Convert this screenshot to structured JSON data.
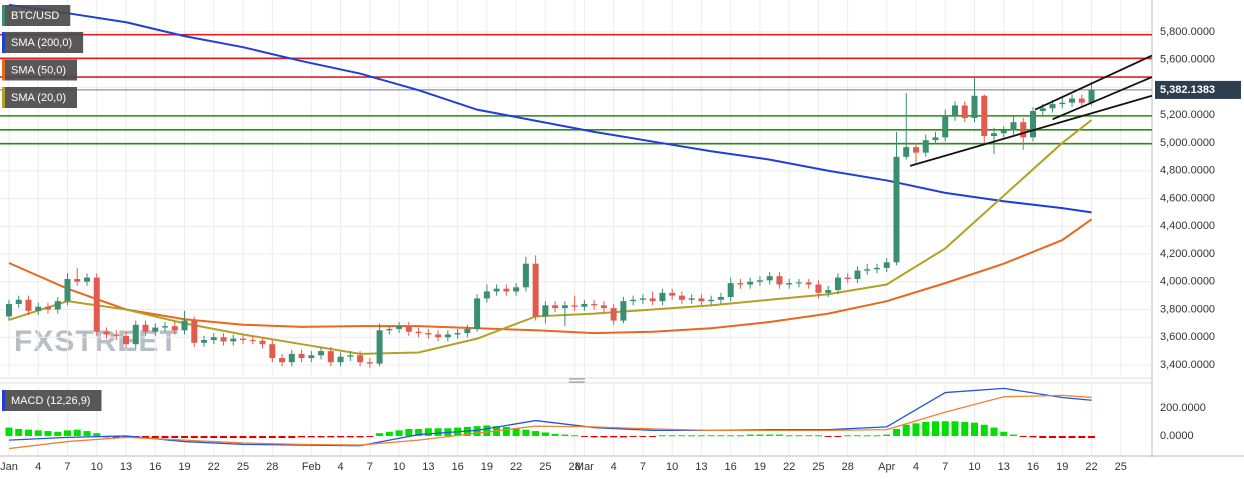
{
  "chart_data": [
    {
      "type": "candlestick",
      "title": "BTC/USD",
      "watermark": "FXSTREET",
      "color_up": "#3a8f71",
      "color_down": "#e35b4f",
      "title_color": "#3a8f71",
      "xlim": [
        -0.92,
        117.2
      ],
      "ylim": [
        3328,
        6030
      ],
      "grid": true,
      "xticks": [
        {
          "value": 0,
          "label": "Jan"
        },
        {
          "value": 3,
          "label": "4"
        },
        {
          "value": 6,
          "label": "7"
        },
        {
          "value": 9,
          "label": "10"
        },
        {
          "value": 12,
          "label": "13"
        },
        {
          "value": 15,
          "label": "16"
        },
        {
          "value": 18,
          "label": "19"
        },
        {
          "value": 21,
          "label": "22"
        },
        {
          "value": 24,
          "label": "25"
        },
        {
          "value": 27,
          "label": "28"
        },
        {
          "value": 31,
          "label": "Feb"
        },
        {
          "value": 34,
          "label": "4"
        },
        {
          "value": 37,
          "label": "7"
        },
        {
          "value": 40,
          "label": "10"
        },
        {
          "value": 43,
          "label": "13"
        },
        {
          "value": 46,
          "label": "16"
        },
        {
          "value": 49,
          "label": "19"
        },
        {
          "value": 52,
          "label": "22"
        },
        {
          "value": 55,
          "label": "25"
        },
        {
          "value": 58,
          "label": "28"
        },
        {
          "value": 59,
          "label": "Mar"
        },
        {
          "value": 62,
          "label": "4"
        },
        {
          "value": 65,
          "label": "7"
        },
        {
          "value": 68,
          "label": "10"
        },
        {
          "value": 71,
          "label": "13"
        },
        {
          "value": 74,
          "label": "16"
        },
        {
          "value": 77,
          "label": "19"
        },
        {
          "value": 80,
          "label": "22"
        },
        {
          "value": 83,
          "label": "25"
        },
        {
          "value": 86,
          "label": "28"
        },
        {
          "value": 90,
          "label": "Apr"
        },
        {
          "value": 93,
          "label": "4"
        },
        {
          "value": 96,
          "label": "7"
        },
        {
          "value": 99,
          "label": "10"
        },
        {
          "value": 102,
          "label": "13"
        },
        {
          "value": 105,
          "label": "16"
        },
        {
          "value": 108,
          "label": "19"
        },
        {
          "value": 111,
          "label": "22"
        },
        {
          "value": 114,
          "label": "25"
        }
      ],
      "yticks": [
        {
          "value": 3400,
          "label": "3,400.0000"
        },
        {
          "value": 3600,
          "label": "3,600.0000"
        },
        {
          "value": 3800,
          "label": "3,800.0000"
        },
        {
          "value": 4000,
          "label": "4,000.0000"
        },
        {
          "value": 4200,
          "label": "4,200.0000"
        },
        {
          "value": 4400,
          "label": "4,400.0000"
        },
        {
          "value": 4600,
          "label": "4,600.0000"
        },
        {
          "value": 4800,
          "label": "4,800.0000"
        },
        {
          "value": 5000,
          "label": "5,000.0000"
        },
        {
          "value": 5200,
          "label": "5,200.0000"
        },
        {
          "value": 5400,
          "label": "5,400.0000"
        },
        {
          "value": 5600,
          "label": "5,600.0000"
        },
        {
          "value": 5800,
          "label": "5,800.0000"
        }
      ],
      "open": [
        3750,
        3840,
        3870,
        3790,
        3820,
        3800,
        3860,
        4020,
        4000,
        4030,
        3640,
        3620,
        3610,
        3550,
        3690,
        3640,
        3670,
        3680,
        3650,
        3720,
        3560,
        3580,
        3600,
        3570,
        3590,
        3580,
        3575,
        3550,
        3450,
        3420,
        3480,
        3450,
        3470,
        3500,
        3420,
        3460,
        3470,
        3420,
        3410,
        3650,
        3660,
        3680,
        3640,
        3630,
        3620,
        3600,
        3620,
        3630,
        3660,
        3880,
        3930,
        3950,
        3930,
        3960,
        4130,
        3750,
        3830,
        3810,
        3830,
        3820,
        3840,
        3830,
        3810,
        3720,
        3860,
        3870,
        3880,
        3860,
        3920,
        3900,
        3870,
        3880,
        3860,
        3870,
        3890,
        3990,
        3980,
        4000,
        4010,
        4040,
        3980,
        3990,
        3995,
        3980,
        3920,
        3940,
        4030,
        4020,
        4080,
        4090,
        4100,
        4140,
        4900,
        4970,
        4930,
        5020,
        5040,
        5200,
        5270,
        5180,
        5340,
        5050,
        5070,
        5090,
        5150,
        5040,
        5230,
        5250,
        5280,
        5290,
        5320,
        5290
      ],
      "high": [
        3870,
        3900,
        3900,
        3850,
        3850,
        3890,
        4060,
        4100,
        4060,
        4060,
        3670,
        3650,
        3640,
        3720,
        3720,
        3700,
        3710,
        3710,
        3790,
        3750,
        3610,
        3630,
        3630,
        3620,
        3620,
        3610,
        3600,
        3580,
        3480,
        3510,
        3510,
        3500,
        3530,
        3530,
        3490,
        3500,
        3500,
        3450,
        3700,
        3680,
        3710,
        3710,
        3670,
        3660,
        3650,
        3650,
        3660,
        3690,
        3910,
        3980,
        3980,
        3980,
        3990,
        4180,
        4190,
        3860,
        3860,
        3860,
        3900,
        3870,
        3870,
        3860,
        3840,
        3890,
        3900,
        3910,
        3930,
        3950,
        3950,
        3930,
        3910,
        3910,
        3900,
        3920,
        4030,
        4020,
        4030,
        4040,
        4070,
        4070,
        4020,
        4020,
        4020,
        4010,
        3970,
        4060,
        4060,
        4110,
        4130,
        4130,
        4170,
        5080,
        5360,
        5000,
        5060,
        5080,
        5240,
        5300,
        5300,
        5470,
        5350,
        5110,
        5120,
        5190,
        5180,
        5260,
        5280,
        5310,
        5340,
        5350,
        5350,
        5440
      ],
      "low": [
        3720,
        3810,
        3760,
        3760,
        3770,
        3770,
        3830,
        3970,
        3970,
        3610,
        3590,
        3580,
        3520,
        3520,
        3610,
        3610,
        3640,
        3620,
        3620,
        3530,
        3530,
        3550,
        3540,
        3540,
        3550,
        3550,
        3520,
        3420,
        3390,
        3390,
        3420,
        3420,
        3440,
        3390,
        3390,
        3430,
        3390,
        3380,
        3390,
        3620,
        3630,
        3610,
        3600,
        3590,
        3570,
        3570,
        3590,
        3600,
        3640,
        3850,
        3900,
        3900,
        3900,
        3930,
        3720,
        3700,
        3780,
        3680,
        3790,
        3790,
        3800,
        3780,
        3690,
        3700,
        3830,
        3840,
        3830,
        3830,
        3870,
        3840,
        3840,
        3830,
        3830,
        3840,
        3860,
        3950,
        3950,
        3970,
        3980,
        3950,
        3950,
        3960,
        3950,
        3880,
        3890,
        3910,
        3990,
        3990,
        4050,
        4060,
        4070,
        4120,
        4880,
        4850,
        4900,
        4990,
        5010,
        5160,
        5150,
        5150,
        4990,
        4920,
        5040,
        5060,
        4950,
        5010,
        5200,
        5220,
        5250,
        5260,
        5260,
        5270
      ],
      "close": [
        3840,
        3870,
        3790,
        3820,
        3800,
        3860,
        4020,
        4000,
        4030,
        3640,
        3620,
        3610,
        3550,
        3690,
        3640,
        3670,
        3680,
        3650,
        3720,
        3560,
        3580,
        3600,
        3570,
        3590,
        3580,
        3575,
        3550,
        3450,
        3420,
        3480,
        3450,
        3470,
        3500,
        3420,
        3460,
        3470,
        3420,
        3410,
        3650,
        3660,
        3680,
        3640,
        3630,
        3620,
        3600,
        3620,
        3630,
        3660,
        3880,
        3930,
        3950,
        3930,
        3960,
        4130,
        3750,
        3830,
        3810,
        3830,
        3820,
        3840,
        3830,
        3810,
        3720,
        3860,
        3870,
        3880,
        3860,
        3920,
        3900,
        3870,
        3880,
        3860,
        3870,
        3890,
        3990,
        3980,
        4000,
        4010,
        4040,
        3980,
        3990,
        3995,
        3980,
        3920,
        3940,
        4030,
        4020,
        4080,
        4090,
        4100,
        4140,
        4900,
        4970,
        4930,
        5020,
        5040,
        5200,
        5270,
        5180,
        5340,
        5050,
        5070,
        5090,
        5150,
        5040,
        5230,
        5250,
        5280,
        5290,
        5320,
        5290,
        5382.1383
      ],
      "indicator_x": [
        0,
        6,
        12,
        18,
        24,
        30,
        36,
        42,
        48,
        54,
        60,
        66,
        72,
        78,
        84,
        90,
        96,
        102,
        108,
        111
      ],
      "series": [
        {
          "name": "SMA (200,0)",
          "color": "#1f3fd6",
          "values": [
            5995,
            5935,
            5870,
            5770,
            5690,
            5590,
            5500,
            5380,
            5240,
            5160,
            5080,
            5010,
            4940,
            4880,
            4800,
            4730,
            4640,
            4580,
            4530,
            4500
          ]
        },
        {
          "name": "SMA (50,0)",
          "color": "#e8681e",
          "values": [
            4135,
            3950,
            3800,
            3730,
            3690,
            3675,
            3680,
            3680,
            3665,
            3650,
            3630,
            3640,
            3665,
            3710,
            3770,
            3860,
            3990,
            4130,
            4300,
            4450
          ]
        },
        {
          "name": "SMA (20,0)",
          "color": "#b3a024",
          "values": [
            3725,
            3860,
            3800,
            3700,
            3620,
            3550,
            3480,
            3490,
            3590,
            3750,
            3770,
            3800,
            3830,
            3870,
            3910,
            3980,
            4240,
            4620,
            5000,
            5165
          ]
        }
      ],
      "levels": [
        {
          "value": 5780,
          "color": "#e02020"
        },
        {
          "value": 5610,
          "color": "#e02020"
        },
        {
          "value": 5475,
          "color": "#e02020"
        },
        {
          "value": 5195,
          "color": "#2a8a1a"
        },
        {
          "value": 5095,
          "color": "#2a8a1a"
        },
        {
          "value": 4995,
          "color": "#2a8a1a"
        }
      ],
      "trend_lines": [
        {
          "x": [
            92.4,
            117.2
          ],
          "values": [
            4835,
            5340
          ]
        },
        {
          "x": [
            105.2,
            117.2
          ],
          "values": [
            5240,
            5630
          ]
        },
        {
          "x": [
            107,
            117.2
          ],
          "values": [
            5170,
            5475
          ]
        }
      ],
      "last_price": {
        "value": 5382.1383,
        "label": "5,382.1383"
      }
    },
    {
      "type": "macd",
      "title": "MACD (12,26,9)",
      "title_color": "#1f3fd6",
      "ylim": [
        -136,
        364
      ],
      "yticks": [
        {
          "value": 0,
          "label": "0.0000"
        },
        {
          "value": 200,
          "label": "200.0000"
        }
      ],
      "x": [
        0,
        6,
        12,
        18,
        24,
        30,
        36,
        42,
        48,
        54,
        60,
        66,
        72,
        78,
        84,
        90,
        96,
        102,
        108,
        111
      ],
      "series": [
        {
          "color": "#2255dd",
          "values": [
            -30,
            -10,
            0,
            -40,
            -60,
            -65,
            -70,
            10,
            40,
            110,
            60,
            40,
            40,
            45,
            45,
            65,
            310,
            340,
            275,
            255
          ]
        },
        {
          "color": "#ee8236",
          "values": [
            -90,
            -40,
            -10,
            -30,
            -50,
            -60,
            -65,
            -30,
            20,
            70,
            65,
            50,
            40,
            40,
            40,
            45,
            170,
            280,
            290,
            275
          ]
        }
      ],
      "histogram": {
        "color_up": "#00e000",
        "color_down": "#e00000",
        "values": [
          60,
          50,
          45,
          40,
          35,
          30,
          40,
          45,
          35,
          20,
          -10,
          -15,
          -15,
          -15,
          -15,
          -15,
          -15,
          -15,
          -15,
          -15,
          -15,
          -15,
          -15,
          -15,
          -15,
          -15,
          -15,
          -15,
          -15,
          -15,
          -10,
          -10,
          -10,
          -10,
          -10,
          -10,
          -10,
          -5,
          20,
          30,
          40,
          50,
          50,
          55,
          55,
          55,
          60,
          65,
          70,
          75,
          70,
          65,
          55,
          45,
          35,
          25,
          15,
          10,
          5,
          -5,
          -10,
          -10,
          -10,
          -10,
          -5,
          -5,
          -5,
          5,
          5,
          5,
          5,
          5,
          5,
          5,
          5,
          5,
          10,
          10,
          10,
          10,
          5,
          5,
          5,
          5,
          -5,
          -5,
          5,
          5,
          5,
          5,
          10,
          50,
          80,
          90,
          100,
          105,
          105,
          105,
          100,
          95,
          80,
          60,
          30,
          10,
          -5,
          -10,
          -15,
          -15,
          -15,
          -15,
          -15,
          -15
        ]
      }
    }
  ]
}
